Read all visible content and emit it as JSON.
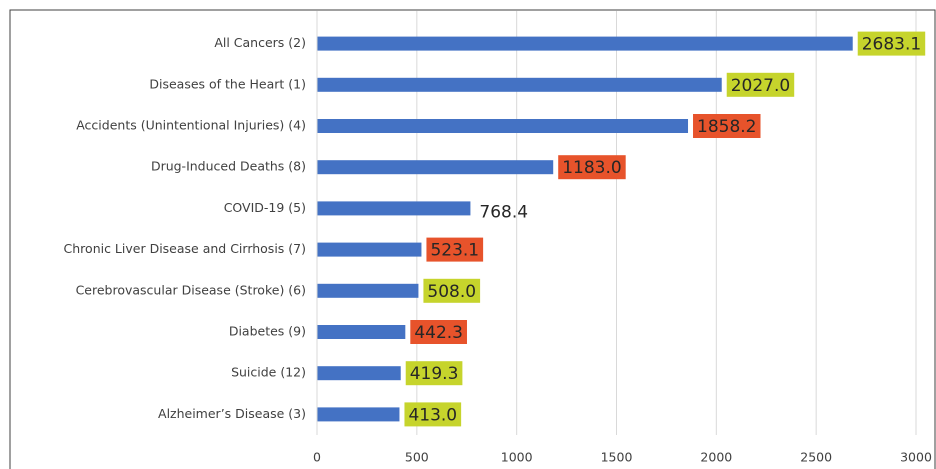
{
  "chart_data": {
    "type": "bar",
    "orientation": "horizontal",
    "categories": [
      "All Cancers (2)",
      "Diseases of the Heart (1)",
      "Accidents (Unintentional Injuries) (4)",
      "Drug-Induced Deaths (8)",
      "COVID-19 (5)",
      "Chronic Liver Disease and Cirrhosis (7)",
      "Cerebrovascular Disease (Stroke) (6)",
      "Diabetes (9)",
      "Suicide (12)",
      "Alzheimer’s Disease (3)"
    ],
    "values": [
      2683.1,
      2027.0,
      1858.2,
      1183.0,
      768.4,
      523.1,
      508.0,
      442.3,
      419.3,
      413.0
    ],
    "value_labels": [
      "2683.1",
      "2027.0",
      "1858.2",
      "1183.0",
      "768.4",
      "523.1",
      "508.0",
      "442.3",
      "419.3",
      "413.0"
    ],
    "label_colors": [
      "#c6d42c",
      "#c6d42c",
      "#e7532b",
      "#e7532b",
      null,
      "#e7532b",
      "#c6d42c",
      "#e7532b",
      "#c6d42c",
      "#c6d42c"
    ],
    "color": "#4472c4",
    "xlim": [
      0,
      3000
    ],
    "xticks": [
      0,
      500,
      1000,
      1500,
      2000,
      2500,
      3000
    ],
    "grid": true
  }
}
